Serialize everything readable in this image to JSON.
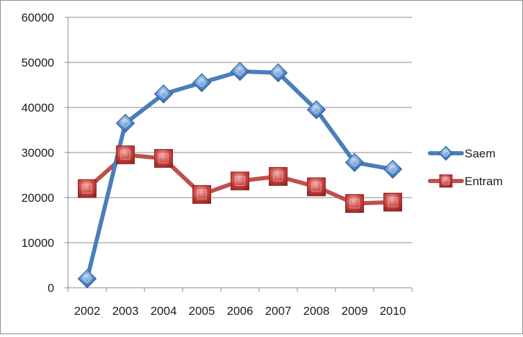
{
  "chart_data": {
    "type": "line",
    "title": "",
    "xlabel": "",
    "ylabel": "",
    "categories": [
      "2002",
      "2003",
      "2004",
      "2005",
      "2006",
      "2007",
      "2008",
      "2009",
      "2010"
    ],
    "ylim": [
      0,
      60000
    ],
    "yticks": [
      0,
      10000,
      20000,
      30000,
      40000,
      50000,
      60000
    ],
    "grid": true,
    "legend_position": "right",
    "series": [
      {
        "name": "Saem",
        "marker": "diamond",
        "color": "#4a7ebb",
        "values": [
          2000,
          36500,
          43000,
          45500,
          48000,
          47700,
          39500,
          27800,
          26300
        ]
      },
      {
        "name": "Entram",
        "marker": "square",
        "color": "#c0504d",
        "values": [
          22000,
          29500,
          28700,
          20700,
          23700,
          24700,
          22400,
          18700,
          19000
        ]
      }
    ]
  }
}
